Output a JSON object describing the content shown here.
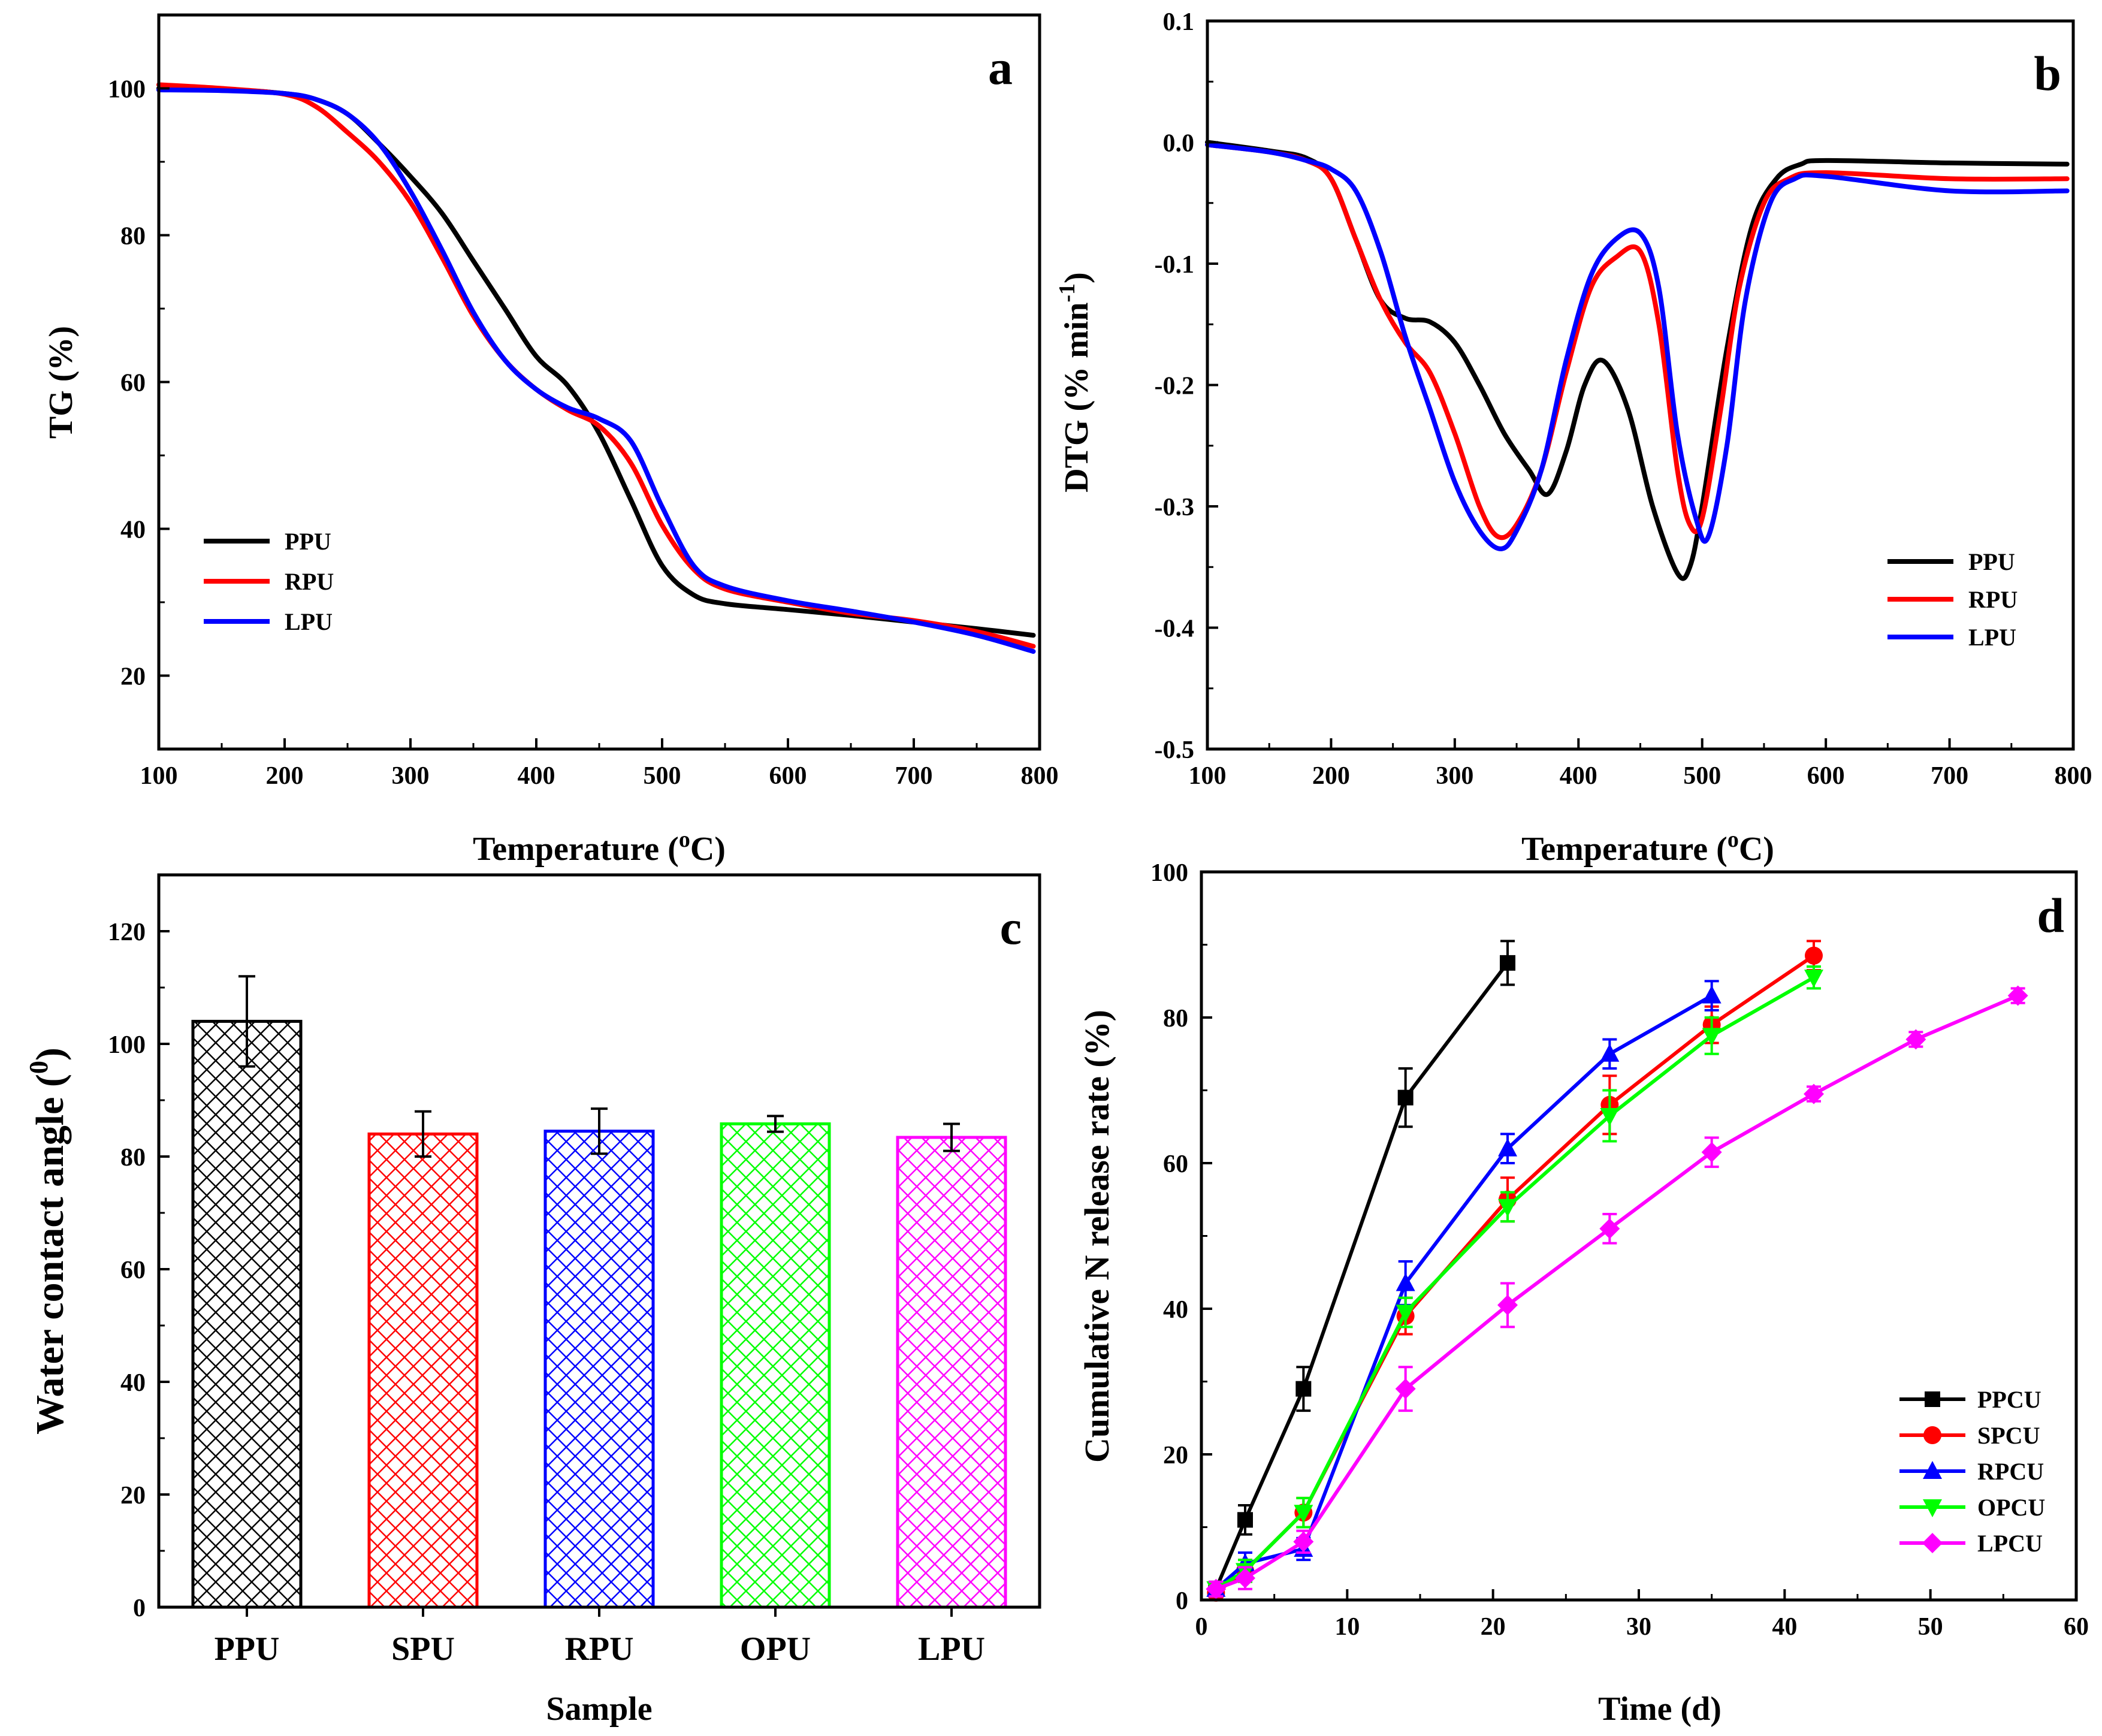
{
  "chart_data": [
    {
      "panel": "a",
      "type": "line",
      "xlabel": "Temperature (°C)",
      "xlabel_main": "Temperature (",
      "xlabel_sup": "o",
      "xlabel_tail": "C)",
      "ylabel": "TG (%)",
      "xlim": [
        100,
        800
      ],
      "ylim": [
        10,
        110
      ],
      "xticks": [
        100,
        200,
        300,
        400,
        500,
        600,
        700,
        800
      ],
      "yticks": [
        20,
        40,
        60,
        80,
        100
      ],
      "legend_position": "lower-left",
      "series": [
        {
          "name": "PPU",
          "color": "#000000",
          "x": [
            100,
            150,
            200,
            225,
            250,
            275,
            300,
            325,
            350,
            375,
            400,
            425,
            450,
            475,
            500,
            525,
            550,
            600,
            650,
            700,
            750,
            795
          ],
          "y": [
            100,
            99.9,
            99.3,
            98.5,
            96.5,
            92.5,
            88,
            83,
            76.5,
            70,
            63.5,
            59.5,
            53,
            44,
            35,
            31,
            29.8,
            29,
            28.2,
            27.3,
            26.4,
            25.5
          ]
        },
        {
          "name": "RPU",
          "color": "#ff0000",
          "x": [
            100,
            150,
            200,
            225,
            250,
            275,
            300,
            325,
            350,
            375,
            400,
            425,
            450,
            475,
            500,
            525,
            550,
            600,
            650,
            700,
            750,
            795
          ],
          "y": [
            100.5,
            100,
            99.2,
            97.5,
            94,
            90,
            84.5,
            77,
            69,
            63,
            59,
            56.2,
            54,
            49,
            40.5,
            34.5,
            31.8,
            30,
            28.5,
            27.5,
            26,
            24
          ]
        },
        {
          "name": "LPU",
          "color": "#0000ff",
          "x": [
            100,
            150,
            200,
            225,
            250,
            275,
            300,
            325,
            350,
            375,
            400,
            425,
            450,
            475,
            500,
            525,
            550,
            600,
            650,
            700,
            750,
            795
          ],
          "y": [
            99.8,
            99.7,
            99.3,
            98.5,
            96.5,
            92.5,
            86,
            78,
            69.5,
            63,
            59,
            56.5,
            55,
            52,
            43,
            35,
            32.2,
            30.2,
            28.8,
            27.3,
            25.5,
            23.3
          ]
        }
      ]
    },
    {
      "panel": "b",
      "type": "line",
      "xlabel": "Temperature (°C)",
      "xlabel_main": "Temperature (",
      "xlabel_sup": "o",
      "xlabel_tail": "C)",
      "ylabel": "DTG (% min⁻¹)",
      "ylabel_main": "DTG (% min",
      "ylabel_sup": "-1",
      "ylabel_tail": ")",
      "xlim": [
        100,
        800
      ],
      "ylim": [
        -0.5,
        0.1
      ],
      "xticks": [
        100,
        200,
        300,
        400,
        500,
        600,
        700,
        800
      ],
      "yticks": [
        -0.5,
        -0.4,
        -0.3,
        -0.2,
        -0.1,
        0.0,
        0.1
      ],
      "ytick_labels": [
        "-0.5",
        "-0.4",
        "-0.3",
        "-0.2",
        "-0.1",
        "0.0",
        "0.1"
      ],
      "legend_position": "lower-right",
      "series": [
        {
          "name": "PPU",
          "color": "#000000",
          "x": [
            100,
            150,
            180,
            200,
            220,
            240,
            260,
            280,
            300,
            320,
            340,
            360,
            375,
            390,
            405,
            420,
            440,
            460,
            480,
            490,
            500,
            520,
            540,
            560,
            580,
            600,
            700,
            795
          ],
          "y": [
            0,
            -0.007,
            -0.013,
            -0.03,
            -0.08,
            -0.13,
            -0.145,
            -0.148,
            -0.165,
            -0.2,
            -0.24,
            -0.27,
            -0.29,
            -0.255,
            -0.2,
            -0.18,
            -0.22,
            -0.3,
            -0.355,
            -0.35,
            -0.3,
            -0.17,
            -0.07,
            -0.03,
            -0.018,
            -0.015,
            -0.017,
            -0.018
          ]
        },
        {
          "name": "RPU",
          "color": "#ff0000",
          "x": [
            100,
            150,
            180,
            200,
            220,
            240,
            260,
            280,
            300,
            320,
            335,
            350,
            370,
            390,
            410,
            430,
            450,
            465,
            480,
            490,
            500,
            515,
            530,
            550,
            570,
            600,
            700,
            795
          ],
          "y": [
            -0.002,
            -0.008,
            -0.015,
            -0.03,
            -0.08,
            -0.13,
            -0.165,
            -0.19,
            -0.24,
            -0.3,
            -0.325,
            -0.315,
            -0.27,
            -0.19,
            -0.12,
            -0.095,
            -0.09,
            -0.15,
            -0.27,
            -0.315,
            -0.31,
            -0.22,
            -0.12,
            -0.05,
            -0.03,
            -0.025,
            -0.03,
            -0.03
          ]
        },
        {
          "name": "LPU",
          "color": "#0000ff",
          "x": [
            100,
            150,
            180,
            200,
            220,
            240,
            260,
            280,
            300,
            320,
            337,
            350,
            370,
            390,
            410,
            430,
            450,
            465,
            480,
            495,
            505,
            520,
            535,
            555,
            575,
            600,
            700,
            795
          ],
          "y": [
            -0.002,
            -0.008,
            -0.015,
            -0.022,
            -0.04,
            -0.09,
            -0.16,
            -0.22,
            -0.28,
            -0.32,
            -0.335,
            -0.32,
            -0.27,
            -0.18,
            -0.11,
            -0.08,
            -0.075,
            -0.12,
            -0.24,
            -0.31,
            -0.325,
            -0.25,
            -0.13,
            -0.05,
            -0.03,
            -0.028,
            -0.04,
            -0.04
          ]
        }
      ]
    },
    {
      "panel": "c",
      "type": "bar",
      "xlabel": "Sample",
      "ylabel": "Water contact angle (°)",
      "ylabel_main": "Water contact angle (",
      "ylabel_sup": "0",
      "ylabel_tail": ")",
      "ylim": [
        0,
        130
      ],
      "yticks": [
        0,
        20,
        40,
        60,
        80,
        100,
        120
      ],
      "categories": [
        "PPU",
        "SPU",
        "RPU",
        "OPU",
        "LPU"
      ],
      "values": [
        104,
        84,
        84.5,
        85.8,
        83.4
      ],
      "errors": [
        8,
        4,
        4,
        1.4,
        2.4
      ],
      "colors": [
        "#000000",
        "#ff0000",
        "#0000ff",
        "#00ff00",
        "#ff00ff"
      ],
      "pattern": "crosshatch"
    },
    {
      "panel": "d",
      "type": "line",
      "xlabel": "Time (d)",
      "ylabel": "Cumulative N release rate (%)",
      "xlim": [
        0,
        60
      ],
      "ylim": [
        0,
        100
      ],
      "xticks": [
        0,
        10,
        20,
        30,
        40,
        50,
        60
      ],
      "yticks": [
        0,
        20,
        40,
        60,
        80,
        100
      ],
      "legend_position": "lower-right",
      "series": [
        {
          "name": "PPCU",
          "color": "#000000",
          "marker": "square",
          "x": [
            1,
            3,
            7,
            14,
            21
          ],
          "y": [
            1.5,
            11,
            29,
            69,
            87.5
          ],
          "err": [
            1,
            2,
            3,
            4,
            3
          ]
        },
        {
          "name": "SPCU",
          "color": "#ff0000",
          "marker": "circle",
          "x": [
            1,
            3,
            7,
            14,
            21,
            28,
            35,
            42
          ],
          "y": [
            1,
            4,
            12,
            39,
            55,
            68,
            79,
            88.5
          ],
          "err": [
            1,
            1.5,
            2,
            2.5,
            3,
            4,
            2.5,
            2
          ]
        },
        {
          "name": "RPCU",
          "color": "#0000ff",
          "marker": "triangle-up",
          "x": [
            1,
            3,
            7,
            14,
            21,
            28,
            35
          ],
          "y": [
            1.5,
            5,
            7,
            43.5,
            62,
            75,
            83
          ],
          "err": [
            1,
            1.5,
            1.5,
            3,
            2,
            2,
            2
          ]
        },
        {
          "name": "OPCU",
          "color": "#00ff00",
          "marker": "triangle-down",
          "x": [
            1,
            3,
            7,
            14,
            21,
            28,
            35,
            42
          ],
          "y": [
            1.5,
            4,
            12,
            39.5,
            54,
            66.5,
            77.5,
            85.5
          ],
          "err": [
            1,
            1.5,
            2,
            2,
            2,
            3.5,
            2.5,
            1.5
          ]
        },
        {
          "name": "LPCU",
          "color": "#ff00ff",
          "marker": "diamond",
          "x": [
            1,
            3,
            7,
            14,
            21,
            28,
            35,
            42,
            49,
            56
          ],
          "y": [
            1.5,
            3,
            8,
            29,
            40.5,
            51,
            61.5,
            69.5,
            77,
            83
          ],
          "err": [
            1,
            1.5,
            1.5,
            3,
            3,
            2,
            2,
            1,
            1,
            1
          ]
        }
      ]
    }
  ]
}
